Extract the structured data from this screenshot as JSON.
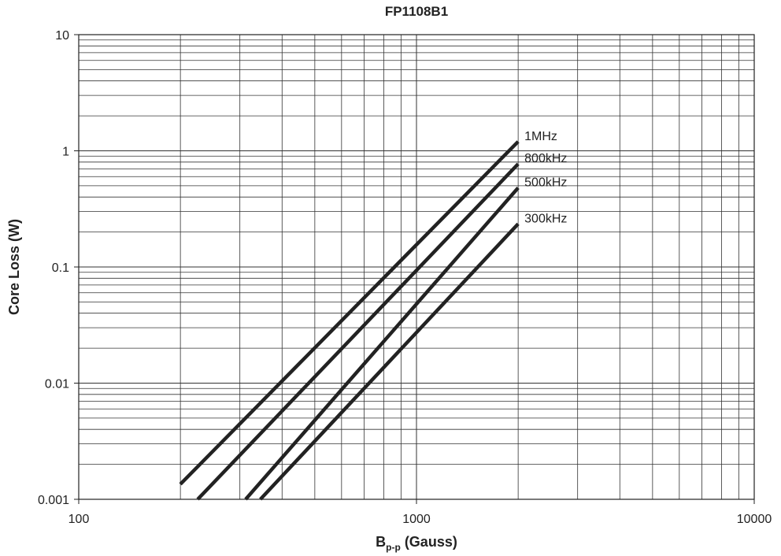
{
  "chart_data": {
    "type": "line",
    "title": "FP1108B1",
    "xlabel_main": "B",
    "xlabel_sub": "p-p",
    "xlabel_unit": " (Gauss)",
    "ylabel": "Core Loss (W)",
    "x_scale": "log",
    "y_scale": "log",
    "xlim": [
      100,
      10000
    ],
    "ylim": [
      0.001,
      10
    ],
    "x_ticks": [
      {
        "value": 100,
        "label": "100"
      },
      {
        "value": 1000,
        "label": "1000"
      },
      {
        "value": 10000,
        "label": "10000"
      }
    ],
    "y_ticks": [
      {
        "value": 10,
        "label": "10"
      },
      {
        "value": 1,
        "label": "1"
      },
      {
        "value": 0.1,
        "label": "0.1"
      },
      {
        "value": 0.01,
        "label": "0.01"
      },
      {
        "value": 0.001,
        "label": "0.001"
      }
    ],
    "grid": true,
    "line_color": "#222222",
    "series": [
      {
        "name": "1MHz",
        "points": [
          [
            200,
            0.00135
          ],
          [
            2000,
            1.2
          ]
        ]
      },
      {
        "name": "800kHz",
        "points": [
          [
            225,
            0.001
          ],
          [
            2000,
            0.77
          ]
        ]
      },
      {
        "name": "500kHz",
        "points": [
          [
            312,
            0.001
          ],
          [
            2000,
            0.48
          ]
        ]
      },
      {
        "name": "300kHz",
        "points": [
          [
            345,
            0.001
          ],
          [
            2000,
            0.235
          ]
        ]
      }
    ]
  }
}
